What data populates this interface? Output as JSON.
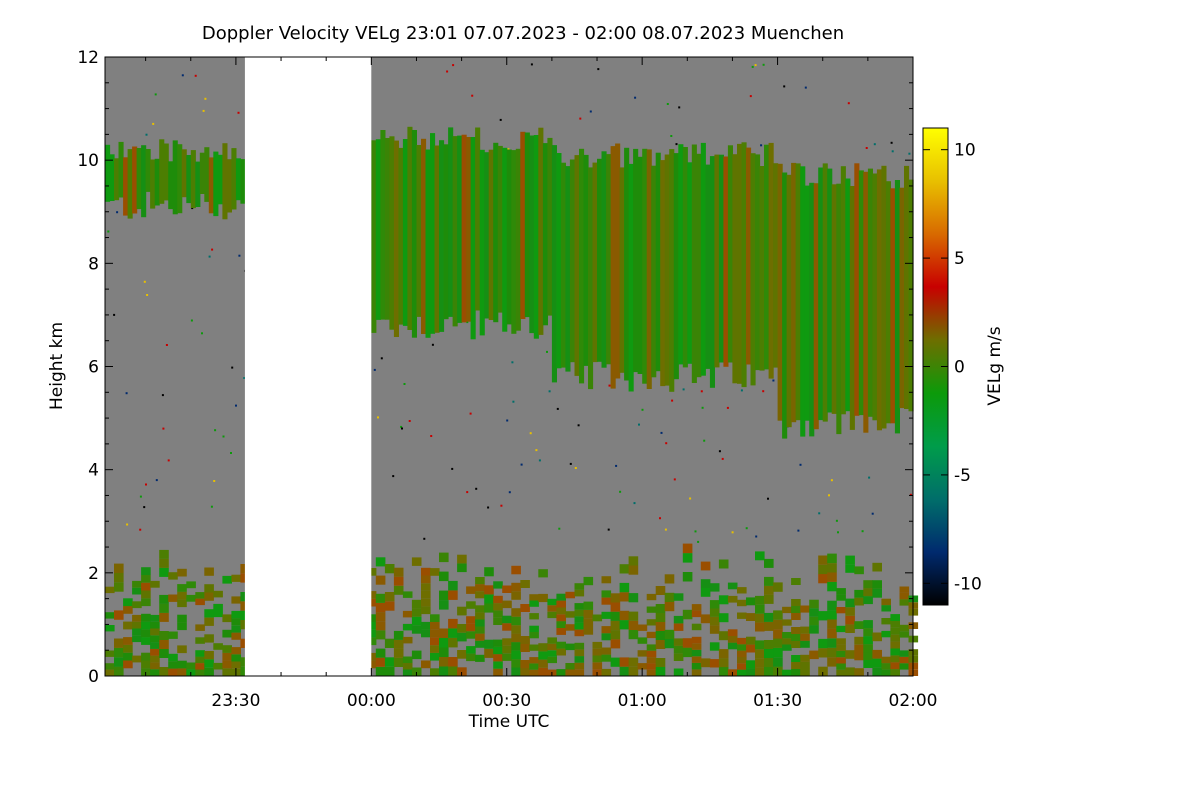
{
  "chart_data": {
    "type": "heatmap",
    "title": "Doppler Velocity VELg   23:01 07.07.2023 - 02:00 08.07.2023 Muenchen",
    "xlabel": "Time UTC",
    "ylabel": "Height km",
    "x_ticks": [
      "23:30",
      "00:00",
      "00:30",
      "01:00",
      "01:30",
      "02:00"
    ],
    "x_tick_minutes": [
      30,
      60,
      90,
      120,
      150,
      180
    ],
    "x_range_minutes": [
      1,
      180
    ],
    "y_ticks": [
      0,
      2,
      4,
      6,
      8,
      10,
      12
    ],
    "ylim": [
      0,
      12
    ],
    "data_gap_minutes": [
      32,
      60
    ],
    "colorbar": {
      "label": "VELg m/s",
      "ticks": [
        10,
        5,
        0,
        -5,
        -10
      ],
      "range": [
        -11,
        11
      ],
      "colors": [
        "#000000",
        "#002a6e",
        "#006e6a",
        "#009c4a",
        "#0c9a0a",
        "#6e6e00",
        "#c80000",
        "#d86a00",
        "#e8c000",
        "#ffff00"
      ]
    },
    "background_color": "#808080",
    "echo_regions": [
      {
        "name": "upper cloud before gap",
        "t": [
          1,
          32
        ],
        "base_km": 9.1,
        "top_km": 10.3
      },
      {
        "name": "upper cloud after gap",
        "t": [
          60,
          100
        ],
        "base_km": 6.8,
        "top_km": 10.5
      },
      {
        "name": "upper cloud mid",
        "t": [
          100,
          150
        ],
        "base_km": 5.8,
        "top_km": 10.2
      },
      {
        "name": "upper cloud end",
        "t": [
          150,
          180
        ],
        "base_km": 4.9,
        "top_km": 9.8
      },
      {
        "name": "boundary layer",
        "t": [
          1,
          180
        ],
        "base_km": 0.0,
        "top_km": 2.6
      }
    ]
  }
}
